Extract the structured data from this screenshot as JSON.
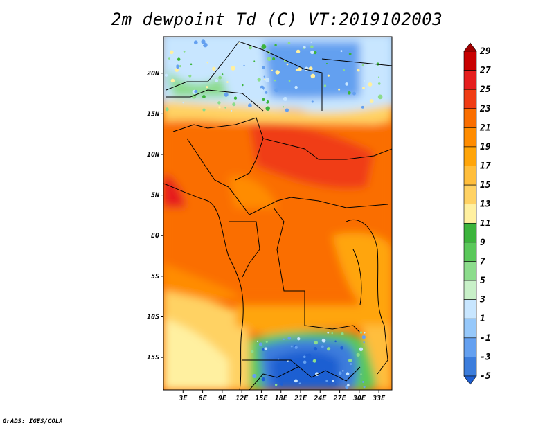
{
  "title": "2m dewpoint Td (C) VT:2019102003",
  "credit": "GrADS: IGES/COLA",
  "map": {
    "lat_labels": [
      "20N",
      "15N",
      "10N",
      "5N",
      "EQ",
      "5S",
      "10S",
      "15S"
    ],
    "lat_values": [
      20,
      15,
      10,
      5,
      0,
      -5,
      -10,
      -15
    ],
    "lon_labels": [
      "3E",
      "6E",
      "9E",
      "12E",
      "15E",
      "18E",
      "21E",
      "24E",
      "27E",
      "30E",
      "33E"
    ],
    "lon_values": [
      3,
      6,
      9,
      12,
      15,
      18,
      21,
      24,
      27,
      30,
      33
    ],
    "lon_range": [
      0,
      35
    ],
    "lat_range": [
      -19,
      24.5
    ]
  },
  "colorbar": {
    "labels": [
      "29",
      "27",
      "25",
      "23",
      "21",
      "19",
      "17",
      "15",
      "13",
      "11",
      "9",
      "7",
      "5",
      "3",
      "1",
      "-1",
      "-3",
      "-5"
    ],
    "colors": [
      "#a00000",
      "#c80000",
      "#e61e1e",
      "#f03c14",
      "#fa6e00",
      "#ff8c00",
      "#ffa50a",
      "#ffbe3c",
      "#ffd264",
      "#fff0a0",
      "#3cb43c",
      "#5ac85a",
      "#8cdc8c",
      "#c8f0c8",
      "#c8e6ff",
      "#96c8fa",
      "#64a0f0",
      "#3c7ddc",
      "#1e5fd2"
    ]
  }
}
